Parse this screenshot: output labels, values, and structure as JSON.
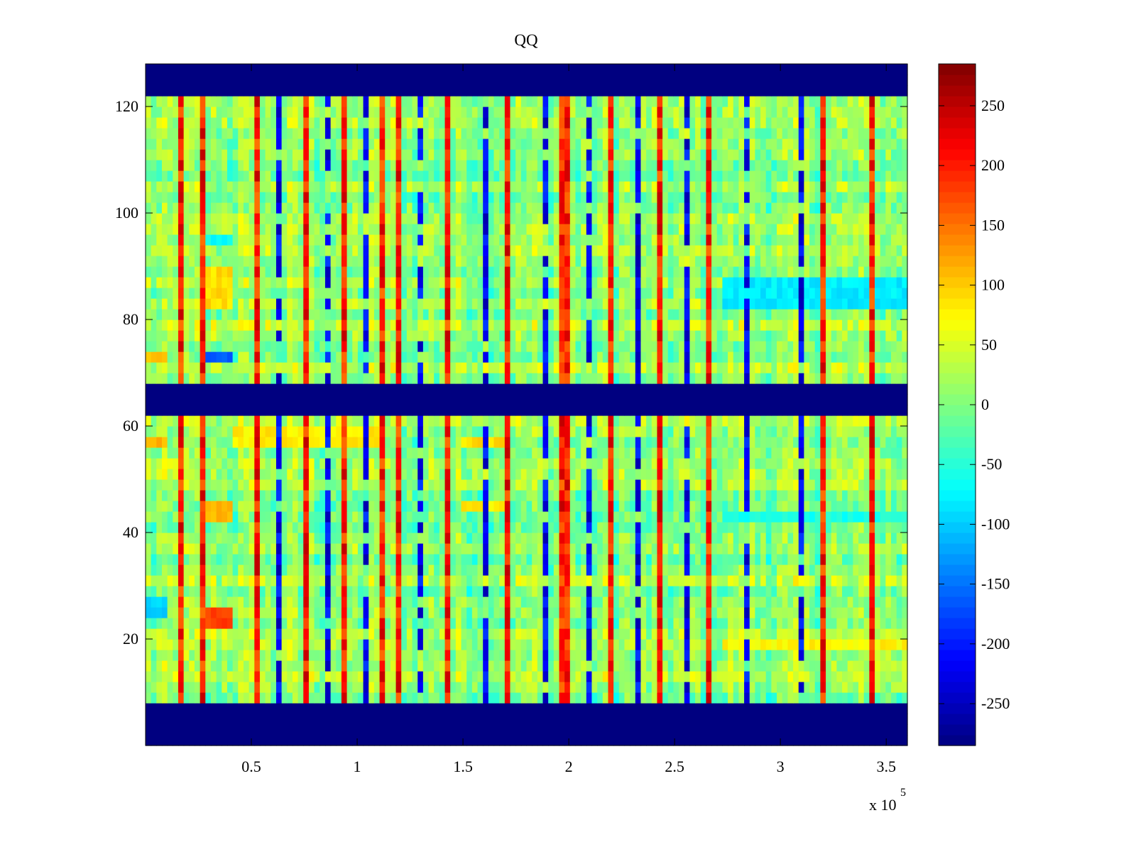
{
  "chart_data": {
    "type": "heatmap",
    "title": "QQ",
    "xlabel": "",
    "ylabel": "",
    "xlim": [
      0,
      360000
    ],
    "ylim": [
      0,
      128
    ],
    "x_ticks": [
      50000,
      100000,
      150000,
      200000,
      250000,
      300000,
      350000
    ],
    "x_tick_labels": [
      "0.5",
      "1",
      "1.5",
      "2",
      "2.5",
      "3",
      "3.5"
    ],
    "x_multiplier": {
      "base": "x 10",
      "exponent": "5"
    },
    "y_ticks": [
      20,
      40,
      60,
      80,
      100,
      120
    ],
    "y_tick_labels": [
      "20",
      "40",
      "60",
      "80",
      "100",
      "120"
    ],
    "colorbar": {
      "colormap": "jet",
      "clim": [
        -285,
        285
      ],
      "ticks": [
        250,
        200,
        150,
        100,
        50,
        0,
        -50,
        -100,
        -150,
        -200,
        -250
      ],
      "tick_labels": [
        "250",
        "200",
        "150",
        "100",
        "50",
        "0",
        "-50",
        "-100",
        "-150",
        "-200",
        "-250"
      ]
    },
    "masked_bands": [
      {
        "from": 0,
        "to": 8,
        "value": -285
      },
      {
        "from": 61.5,
        "to": 68.5,
        "value": -285
      },
      {
        "from": 121.5,
        "to": 128,
        "value": -285
      }
    ],
    "background_value": 10,
    "strong_positive_x": [
      17000,
      28000,
      52000,
      76000,
      95000,
      112000,
      120000,
      142000,
      172000,
      198000,
      220000,
      243000,
      267000,
      321000,
      343000
    ],
    "strong_negative_x": [
      64000,
      87000,
      103000,
      131000,
      160000,
      188000,
      210000,
      232000,
      255000,
      283000,
      310000
    ],
    "regions": [
      {
        "x": [
          29000,
          41000
        ],
        "y": [
          22,
          26
        ],
        "value": 175
      },
      {
        "x": [
          29000,
          41000
        ],
        "y": [
          43,
          46
        ],
        "value": 110
      },
      {
        "x": [
          29000,
          41000
        ],
        "y": [
          72,
          75
        ],
        "value": -170
      },
      {
        "x": [
          29000,
          41000
        ],
        "y": [
          94,
          97
        ],
        "value": -70
      },
      {
        "x": [
          29000,
          41000
        ],
        "y": [
          82,
          90
        ],
        "value": 90
      },
      {
        "x": [
          0,
          10000
        ],
        "y": [
          25,
          29
        ],
        "value": -95
      },
      {
        "x": [
          0,
          10000
        ],
        "y": [
          56,
          58
        ],
        "value": 110
      },
      {
        "x": [
          0,
          10000
        ],
        "y": [
          72,
          74
        ],
        "value": 110
      },
      {
        "x": [
          272000,
          360000
        ],
        "y": [
          82,
          89
        ],
        "value": -80
      },
      {
        "x": [
          272000,
          360000
        ],
        "y": [
          43,
          45
        ],
        "value": -60
      },
      {
        "x": [
          150000,
          170000
        ],
        "y": [
          44,
          46
        ],
        "value": 80
      },
      {
        "x": [
          150000,
          170000
        ],
        "y": [
          56,
          58
        ],
        "value": 90
      },
      {
        "x": [
          40000,
          110000
        ],
        "y": [
          57,
          61
        ],
        "value": 80
      },
      {
        "x": [
          272000,
          360000
        ],
        "y": [
          19,
          21
        ],
        "value": 75
      }
    ]
  }
}
